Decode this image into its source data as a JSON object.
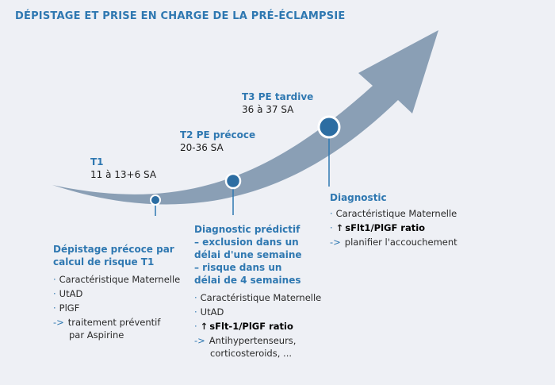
{
  "title": "DÉPISTAGE ET PRISE EN CHARGE DE LA PRÉ-ÉCLAMPSIE",
  "colors": {
    "accent": "#2f78b1",
    "arrow": "#8a9fb5",
    "dot": "#2c6da2",
    "background": "#eef0f5"
  },
  "stages": {
    "t1": {
      "label": "T1",
      "range": "11 à 13+6 SA"
    },
    "t2": {
      "label": "T2 PE précoce",
      "range": "20-36 SA"
    },
    "t3": {
      "label": "T3 PE tardive",
      "range": "36 à 37 SA"
    }
  },
  "blocks": {
    "screening": {
      "heading": "Dépistage précoce par calcul de risque T1",
      "items": {
        "a": "Caractéristique Maternelle",
        "b": "UtAD",
        "c": "PlGF",
        "d_arrow": "->",
        "d": "traitement préventif",
        "d2": "par Aspirine"
      }
    },
    "predictive": {
      "heading": "Diagnostic prédictif – exclusion dans un délai d'une semaine – risque dans un délai de 4 semaines",
      "items": {
        "a": "Caractéristique Maternelle",
        "b": "UtAD",
        "c": "sFlt-1/PlGF ratio",
        "d_arrow": "->",
        "d": "Antihypertenseurs,",
        "d2": "corticosteroids, ..."
      }
    },
    "diagnostic": {
      "heading": "Diagnostic",
      "items": {
        "a": "Caractéristique Maternelle",
        "b": "sFlt1/PlGF ratio",
        "c_arrow": "->",
        "c": "planifier l'accouchement"
      }
    }
  },
  "symbols": {
    "bullet": "·",
    "up_arrow": "↑"
  }
}
